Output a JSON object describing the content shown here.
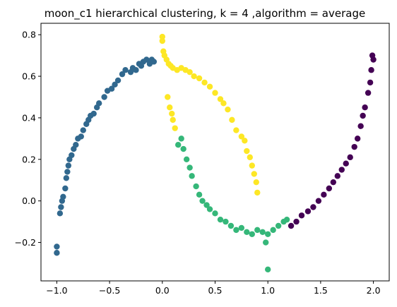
{
  "chart_data": {
    "type": "scatter",
    "title": "moon_c1 hierarchical clustering, k = 4 ,algorithm = average",
    "xlabel": "",
    "ylabel": "",
    "xlim": [
      -1.15,
      2.15
    ],
    "ylim": [
      -0.385,
      0.855
    ],
    "grid": false,
    "legend": "none",
    "x_ticks": [
      {
        "value": -1.0,
        "label": "−1.0"
      },
      {
        "value": -0.5,
        "label": "−0.5"
      },
      {
        "value": 0.0,
        "label": "0.0"
      },
      {
        "value": 0.5,
        "label": "0.5"
      },
      {
        "value": 1.0,
        "label": "1.0"
      },
      {
        "value": 1.5,
        "label": "1.5"
      },
      {
        "value": 2.0,
        "label": "2.0"
      }
    ],
    "y_ticks": [
      {
        "value": -0.2,
        "label": "−0.2"
      },
      {
        "value": 0.0,
        "label": "0.0"
      },
      {
        "value": 0.2,
        "label": "0.2"
      },
      {
        "value": 0.4,
        "label": "0.4"
      },
      {
        "value": 0.6,
        "label": "0.6"
      },
      {
        "value": 0.8,
        "label": "0.8"
      }
    ],
    "series": [
      {
        "color": "#31688e",
        "points": [
          [
            -1.0,
            -0.25
          ],
          [
            -1.0,
            -0.22
          ],
          [
            -0.97,
            -0.06
          ],
          [
            -0.96,
            -0.03
          ],
          [
            -0.95,
            0.0
          ],
          [
            -0.94,
            0.02
          ],
          [
            -0.92,
            0.06
          ],
          [
            -0.91,
            0.11
          ],
          [
            -0.9,
            0.14
          ],
          [
            -0.89,
            0.17
          ],
          [
            -0.88,
            0.2
          ],
          [
            -0.86,
            0.22
          ],
          [
            -0.84,
            0.25
          ],
          [
            -0.82,
            0.27
          ],
          [
            -0.8,
            0.3
          ],
          [
            -0.77,
            0.31
          ],
          [
            -0.75,
            0.34
          ],
          [
            -0.72,
            0.37
          ],
          [
            -0.7,
            0.39
          ],
          [
            -0.68,
            0.41
          ],
          [
            -0.65,
            0.42
          ],
          [
            -0.62,
            0.45
          ],
          [
            -0.6,
            0.47
          ],
          [
            -0.55,
            0.5
          ],
          [
            -0.52,
            0.53
          ],
          [
            -0.48,
            0.54
          ],
          [
            -0.45,
            0.56
          ],
          [
            -0.42,
            0.58
          ],
          [
            -0.38,
            0.61
          ],
          [
            -0.35,
            0.63
          ],
          [
            -0.3,
            0.62
          ],
          [
            -0.28,
            0.64
          ],
          [
            -0.25,
            0.63
          ],
          [
            -0.22,
            0.66
          ],
          [
            -0.2,
            0.65
          ],
          [
            -0.18,
            0.67
          ],
          [
            -0.15,
            0.68
          ],
          [
            -0.12,
            0.66
          ],
          [
            -0.1,
            0.68
          ],
          [
            -0.08,
            0.67
          ]
        ]
      },
      {
        "color": "#fde725",
        "points": [
          [
            0.0,
            0.79
          ],
          [
            0.0,
            0.77
          ],
          [
            0.01,
            0.72
          ],
          [
            0.02,
            0.7
          ],
          [
            0.04,
            0.68
          ],
          [
            0.06,
            0.66
          ],
          [
            0.08,
            0.65
          ],
          [
            0.1,
            0.64
          ],
          [
            0.14,
            0.63
          ],
          [
            0.18,
            0.64
          ],
          [
            0.22,
            0.63
          ],
          [
            0.26,
            0.62
          ],
          [
            0.3,
            0.6
          ],
          [
            0.35,
            0.59
          ],
          [
            0.4,
            0.57
          ],
          [
            0.45,
            0.55
          ],
          [
            0.5,
            0.52
          ],
          [
            0.55,
            0.49
          ],
          [
            0.58,
            0.47
          ],
          [
            0.62,
            0.44
          ],
          [
            0.66,
            0.39
          ],
          [
            0.7,
            0.34
          ],
          [
            0.75,
            0.31
          ],
          [
            0.78,
            0.29
          ],
          [
            0.8,
            0.24
          ],
          [
            0.83,
            0.21
          ],
          [
            0.85,
            0.17
          ],
          [
            0.87,
            0.13
          ],
          [
            0.89,
            0.09
          ],
          [
            0.9,
            0.04
          ],
          [
            0.05,
            0.5
          ],
          [
            0.07,
            0.45
          ],
          [
            0.09,
            0.42
          ],
          [
            0.1,
            0.39
          ],
          [
            0.12,
            0.35
          ]
        ]
      },
      {
        "color": "#35b779",
        "points": [
          [
            0.18,
            0.3
          ],
          [
            0.15,
            0.27
          ],
          [
            0.2,
            0.25
          ],
          [
            0.23,
            0.2
          ],
          [
            0.26,
            0.16
          ],
          [
            0.28,
            0.12
          ],
          [
            0.32,
            0.07
          ],
          [
            0.35,
            0.03
          ],
          [
            0.38,
            0.0
          ],
          [
            0.42,
            -0.02
          ],
          [
            0.45,
            -0.04
          ],
          [
            0.5,
            -0.06
          ],
          [
            0.55,
            -0.09
          ],
          [
            0.6,
            -0.1
          ],
          [
            0.65,
            -0.12
          ],
          [
            0.7,
            -0.14
          ],
          [
            0.75,
            -0.13
          ],
          [
            0.8,
            -0.15
          ],
          [
            0.85,
            -0.16
          ],
          [
            0.9,
            -0.14
          ],
          [
            0.95,
            -0.15
          ],
          [
            1.0,
            -0.16
          ],
          [
            1.05,
            -0.14
          ],
          [
            1.1,
            -0.12
          ],
          [
            1.15,
            -0.1
          ],
          [
            1.18,
            -0.09
          ],
          [
            0.98,
            -0.2
          ],
          [
            1.0,
            -0.33
          ]
        ]
      },
      {
        "color": "#440154",
        "points": [
          [
            1.22,
            -0.12
          ],
          [
            1.27,
            -0.1
          ],
          [
            1.32,
            -0.07
          ],
          [
            1.38,
            -0.05
          ],
          [
            1.43,
            -0.03
          ],
          [
            1.48,
            0.0
          ],
          [
            1.53,
            0.03
          ],
          [
            1.58,
            0.06
          ],
          [
            1.62,
            0.09
          ],
          [
            1.66,
            0.12
          ],
          [
            1.7,
            0.15
          ],
          [
            1.74,
            0.18
          ],
          [
            1.78,
            0.21
          ],
          [
            1.82,
            0.26
          ],
          [
            1.85,
            0.3
          ],
          [
            1.88,
            0.36
          ],
          [
            1.9,
            0.41
          ],
          [
            1.92,
            0.45
          ],
          [
            1.95,
            0.52
          ],
          [
            1.97,
            0.57
          ],
          [
            1.98,
            0.63
          ],
          [
            2.0,
            0.68
          ],
          [
            1.99,
            0.7
          ]
        ]
      }
    ]
  }
}
